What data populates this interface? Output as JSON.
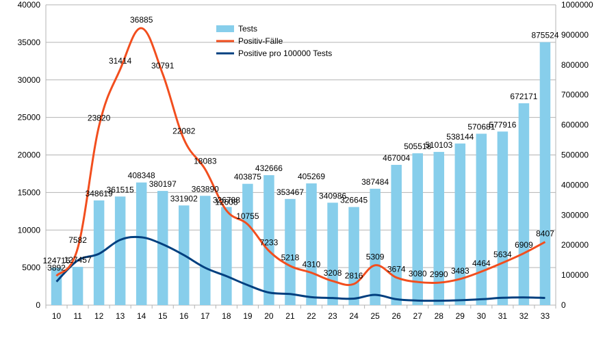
{
  "chart_data": {
    "type": "bar",
    "categories": [
      "10",
      "11",
      "12",
      "13",
      "14",
      "15",
      "16",
      "17",
      "18",
      "19",
      "20",
      "21",
      "22",
      "23",
      "24",
      "25",
      "26",
      "27",
      "28",
      "29",
      "30",
      "31",
      "32",
      "33"
    ],
    "series": [
      {
        "name": "Tests",
        "type": "bar",
        "axis": "right",
        "color": "#87CEEB",
        "values": [
          124716,
          127457,
          348619,
          361515,
          408348,
          380197,
          331902,
          363890,
          326788,
          403875,
          432666,
          353467,
          405269,
          340986,
          326645,
          387484,
          467004,
          505518,
          510103,
          538144,
          570681,
          577916,
          672171,
          875524
        ],
        "labels": [
          "124716",
          "127457",
          "348619",
          "361515",
          "408348",
          "380197",
          "331902",
          "363890",
          "326788",
          "403875",
          "432666",
          "353467",
          "405269",
          "340986",
          "326645",
          "387484",
          "467004",
          "505518",
          "510103",
          "538144",
          "570681",
          "577916",
          "672171",
          "875524"
        ]
      },
      {
        "name": "Positiv-Fälle",
        "type": "line",
        "axis": "left",
        "color": "#F24E1E",
        "values": [
          3892,
          7582,
          23820,
          31414,
          36885,
          30791,
          22082,
          18083,
          12608,
          10755,
          7233,
          5218,
          4310,
          3208,
          2816,
          5309,
          3674,
          3080,
          2990,
          3483,
          4464,
          5634,
          6909,
          8407
        ],
        "labels": [
          "3892",
          "7582",
          "23820",
          "31414",
          "36885",
          "30791",
          "22082",
          "18083",
          "12608",
          "10755",
          "7233",
          "5218",
          "4310",
          "3208",
          "2816",
          "5309",
          "3674",
          "3080",
          "2990",
          "3483",
          "4464",
          "5634",
          "6909",
          "8407"
        ]
      },
      {
        "name": "Positive pro 100000 Tests",
        "type": "line",
        "axis": "left",
        "color": "#003F7F",
        "values": [
          3121,
          5949,
          6833,
          8690,
          9033,
          8099,
          6653,
          4969,
          3858,
          2663,
          1672,
          1476,
          1063,
          941,
          862,
          1370,
          787,
          609,
          586,
          647,
          782,
          975,
          1028,
          960
        ]
      }
    ],
    "left_axis": {
      "min": 0,
      "max": 40000,
      "step": 5000,
      "labels": [
        "0",
        "5000",
        "10000",
        "15000",
        "20000",
        "25000",
        "30000",
        "35000",
        "40000"
      ]
    },
    "right_axis": {
      "min": 0,
      "max": 1000000,
      "step": 100000,
      "labels": [
        "0",
        "100000",
        "200000",
        "300000",
        "400000",
        "500000",
        "600000",
        "700000",
        "800000",
        "900000",
        "1000000"
      ]
    },
    "grid": true,
    "legend_position": "top-center",
    "title": "",
    "xlabel": "",
    "ylabel": ""
  }
}
